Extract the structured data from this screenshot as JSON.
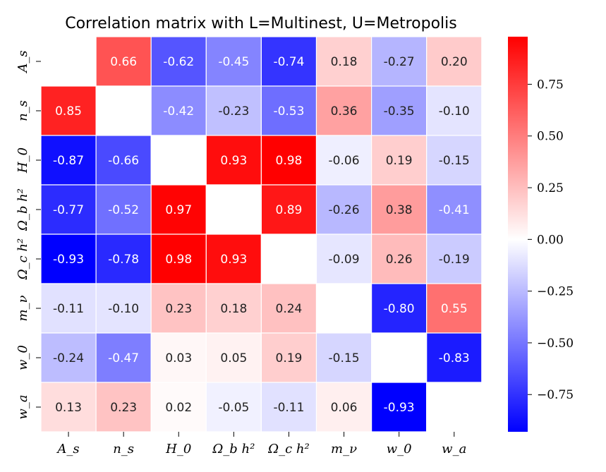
{
  "chart_data": {
    "type": "heatmap",
    "title": "Correlation matrix with L=Multinest, U=Metropolis",
    "row_labels": [
      "A_s",
      "n_s",
      "H_0",
      "Ω_b h²",
      "Ω_c h²",
      "m_ν",
      "w_0",
      "w_a"
    ],
    "col_labels": [
      "A_s",
      "n_s",
      "H_0",
      "Ω_b h²",
      "Ω_c h²",
      "m_ν",
      "w_0",
      "w_a"
    ],
    "values": [
      [
        null,
        0.66,
        -0.62,
        -0.45,
        -0.74,
        0.18,
        -0.27,
        0.2
      ],
      [
        0.85,
        null,
        -0.42,
        -0.23,
        -0.53,
        0.36,
        -0.35,
        -0.1
      ],
      [
        -0.87,
        -0.66,
        null,
        0.93,
        0.98,
        -0.06,
        0.19,
        -0.15
      ],
      [
        -0.77,
        -0.52,
        0.97,
        null,
        0.89,
        -0.26,
        0.38,
        -0.41
      ],
      [
        -0.93,
        -0.78,
        0.98,
        0.93,
        null,
        -0.09,
        0.26,
        -0.19
      ],
      [
        -0.11,
        -0.1,
        0.23,
        0.18,
        0.24,
        null,
        -0.8,
        0.55
      ],
      [
        -0.24,
        -0.47,
        0.03,
        0.05,
        0.19,
        -0.15,
        null,
        -0.83
      ],
      [
        0.13,
        0.23,
        0.02,
        -0.05,
        -0.11,
        0.06,
        -0.93,
        null
      ]
    ],
    "value_labels": [
      [
        "",
        "0.66",
        "-0.62",
        "-0.45",
        "-0.74",
        "0.18",
        "-0.27",
        "0.20"
      ],
      [
        "0.85",
        "",
        "-0.42",
        "-0.23",
        "-0.53",
        "0.36",
        "-0.35",
        "-0.10"
      ],
      [
        "-0.87",
        "-0.66",
        "",
        "0.93",
        "0.98",
        "-0.06",
        "0.19",
        "-0.15"
      ],
      [
        "-0.77",
        "-0.52",
        "0.97",
        "",
        "0.89",
        "-0.26",
        "0.38",
        "-0.41"
      ],
      [
        "-0.93",
        "-0.78",
        "0.98",
        "0.93",
        "",
        "-0.09",
        "0.26",
        "-0.19"
      ],
      [
        "-0.11",
        "-0.10",
        "0.23",
        "0.18",
        "0.24",
        "",
        "-0.80",
        "0.55"
      ],
      [
        "-0.24",
        "-0.47",
        "0.03",
        "0.05",
        "0.19",
        "-0.15",
        "",
        "-0.83"
      ],
      [
        "0.13",
        "0.23",
        "0.02",
        "-0.05",
        "-0.11",
        "0.06",
        "-0.93",
        ""
      ]
    ],
    "colormap": "bwr",
    "color_range": [
      -0.93,
      0.98
    ],
    "colorbar": {
      "ticks": [
        0.75,
        0.5,
        0.25,
        0.0,
        -0.25,
        -0.5,
        -0.75
      ],
      "tick_labels": [
        "0.75",
        "0.50",
        "0.25",
        "0.00",
        "−0.25",
        "−0.50",
        "−0.75"
      ]
    },
    "colors": {
      "negative": "#0000ff",
      "zero": "#ffffff",
      "positive": "#ff0000"
    }
  }
}
